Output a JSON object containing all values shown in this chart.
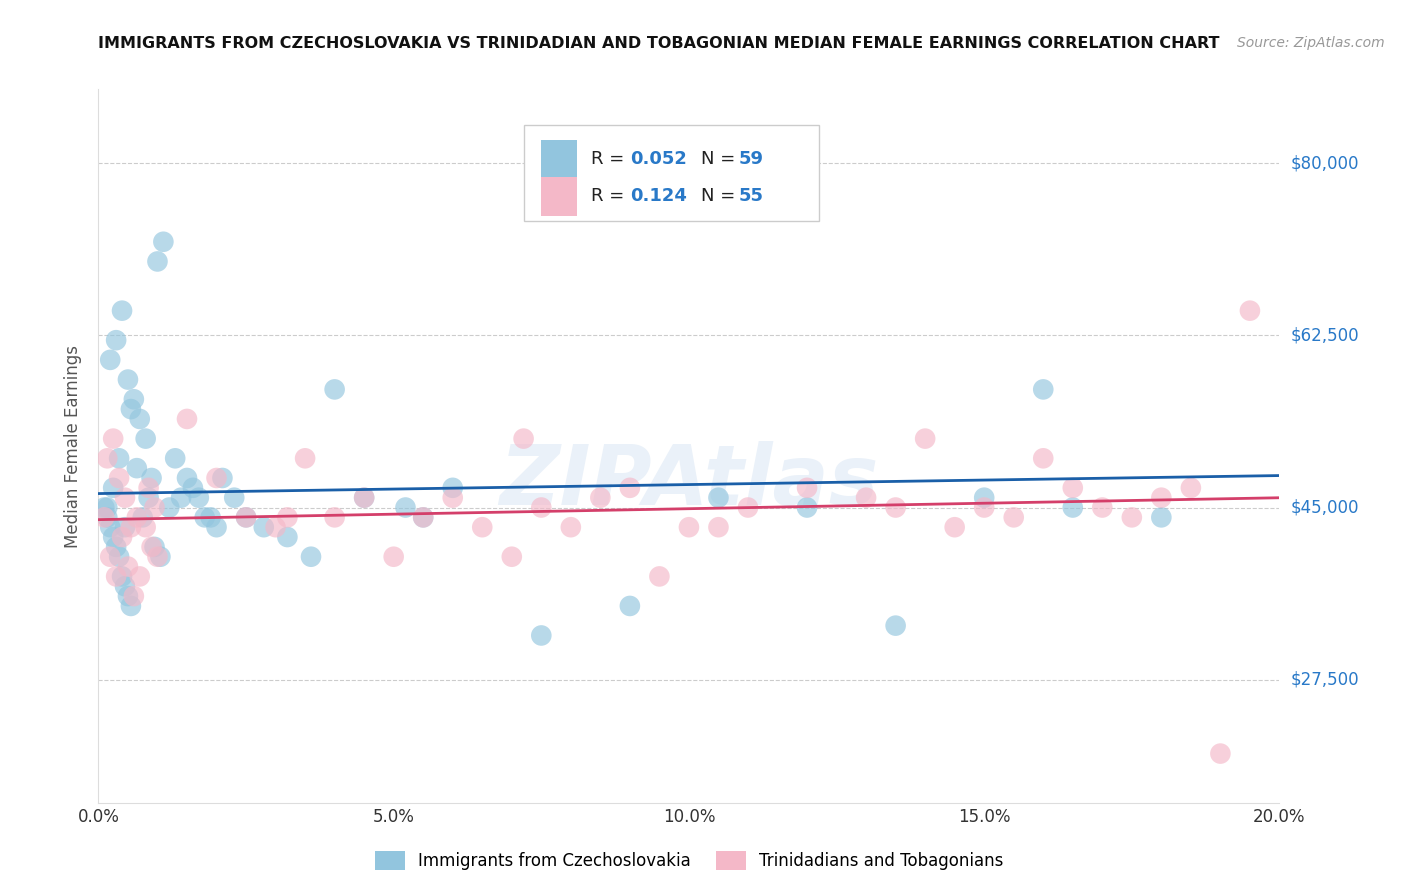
{
  "title": "IMMIGRANTS FROM CZECHOSLOVAKIA VS TRINIDADIAN AND TOBAGONIAN MEDIAN FEMALE EARNINGS CORRELATION CHART",
  "source": "Source: ZipAtlas.com",
  "ylabel": "Median Female Earnings",
  "xlabel": "",
  "xlim": [
    0.0,
    20.0
  ],
  "ylim": [
    15000,
    87500
  ],
  "yticks": [
    27500,
    45000,
    62500,
    80000
  ],
  "ytick_labels": [
    "$27,500",
    "$45,000",
    "$62,500",
    "$80,000"
  ],
  "xticks": [
    0.0,
    5.0,
    10.0,
    15.0,
    20.0
  ],
  "xtick_labels": [
    "0.0%",
    "5.0%",
    "10.0%",
    "15.0%",
    "20.0%"
  ],
  "series": [
    {
      "name": "Immigrants from Czechoslovakia",
      "color": "#92c5de",
      "R": 0.052,
      "N": 59,
      "x": [
        0.15,
        0.25,
        0.35,
        0.45,
        0.55,
        0.65,
        0.75,
        0.85,
        0.95,
        1.05,
        0.2,
        0.3,
        0.4,
        0.5,
        0.6,
        0.7,
        0.8,
        0.9,
        1.0,
        1.1,
        1.3,
        1.5,
        1.7,
        1.9,
        2.1,
        2.3,
        2.5,
        2.8,
        3.2,
        3.6,
        0.1,
        0.15,
        0.2,
        0.25,
        0.3,
        0.35,
        0.4,
        0.45,
        0.5,
        0.55,
        1.2,
        1.4,
        1.6,
        1.8,
        2.0,
        4.5,
        5.2,
        6.0,
        7.5,
        9.0,
        10.5,
        12.0,
        13.5,
        15.0,
        16.5,
        18.0,
        4.0,
        5.5,
        16.0
      ],
      "y": [
        45000,
        47000,
        50000,
        43000,
        55000,
        49000,
        44000,
        46000,
        41000,
        40000,
        60000,
        62000,
        65000,
        58000,
        56000,
        54000,
        52000,
        48000,
        70000,
        72000,
        50000,
        48000,
        46000,
        44000,
        48000,
        46000,
        44000,
        43000,
        42000,
        40000,
        45000,
        44000,
        43000,
        42000,
        41000,
        40000,
        38000,
        37000,
        36000,
        35000,
        45000,
        46000,
        47000,
        44000,
        43000,
        46000,
        45000,
        47000,
        32000,
        35000,
        46000,
        45000,
        33000,
        46000,
        45000,
        44000,
        57000,
        44000,
        57000
      ]
    },
    {
      "name": "Trinidadians and Tobagonians",
      "color": "#f4b8c8",
      "R": 0.124,
      "N": 55,
      "x": [
        0.1,
        0.2,
        0.3,
        0.4,
        0.5,
        0.6,
        0.7,
        0.8,
        0.9,
        1.0,
        0.15,
        0.25,
        0.35,
        0.45,
        0.55,
        0.65,
        0.85,
        0.95,
        1.5,
        2.0,
        2.5,
        3.0,
        3.5,
        4.0,
        4.5,
        5.0,
        5.5,
        6.0,
        6.5,
        7.0,
        7.5,
        8.0,
        8.5,
        9.0,
        9.5,
        10.0,
        10.5,
        11.0,
        12.0,
        13.0,
        13.5,
        14.0,
        14.5,
        15.0,
        15.5,
        16.0,
        16.5,
        17.0,
        17.5,
        18.0,
        18.5,
        19.0,
        19.5,
        3.2,
        7.2
      ],
      "y": [
        44000,
        40000,
        38000,
        42000,
        39000,
        36000,
        38000,
        43000,
        41000,
        40000,
        50000,
        52000,
        48000,
        46000,
        43000,
        44000,
        47000,
        45000,
        54000,
        48000,
        44000,
        43000,
        50000,
        44000,
        46000,
        40000,
        44000,
        46000,
        43000,
        40000,
        45000,
        43000,
        46000,
        47000,
        38000,
        43000,
        43000,
        45000,
        47000,
        46000,
        45000,
        52000,
        43000,
        45000,
        44000,
        50000,
        47000,
        45000,
        44000,
        46000,
        47000,
        20000,
        65000,
        44000,
        52000
      ]
    }
  ],
  "line_colors": [
    "#1a5fa8",
    "#d43f6a"
  ],
  "watermark": "ZIPAtlas",
  "background_color": "#ffffff",
  "grid_color": "#cccccc",
  "title_color": "#111111",
  "axis_label_color": "#555555",
  "ytick_color": "#2979c8",
  "xtick_color": "#333333"
}
